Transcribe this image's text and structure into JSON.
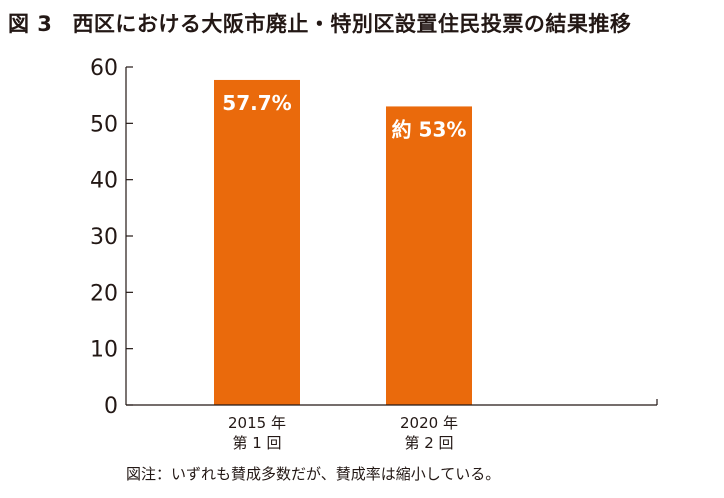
{
  "figure": {
    "number": "図 3",
    "title": "西区における大阪市廃止・特別区設置住民投票の結果推移"
  },
  "footnote": "図注：いずれも賛成多数だが、賛成率は縮小している。",
  "colors": {
    "bar": "#EA6A0C",
    "axis": "#231815",
    "bar_label": "#ffffff"
  },
  "chart_data": {
    "type": "bar",
    "title": "西区における大阪市廃止・特別区設置住民投票の結果推移",
    "xlabel": "",
    "ylabel": "",
    "ylim": [
      0,
      60
    ],
    "yticks": [
      0,
      10,
      20,
      30,
      40,
      50,
      60
    ],
    "grid": false,
    "legend": "none",
    "categories": [
      [
        "2015 年",
        "第 1 回"
      ],
      [
        "2020 年",
        "第 2 回"
      ]
    ],
    "values": [
      57.7,
      53
    ],
    "data_labels": [
      "57.7%",
      "約 53%"
    ]
  }
}
